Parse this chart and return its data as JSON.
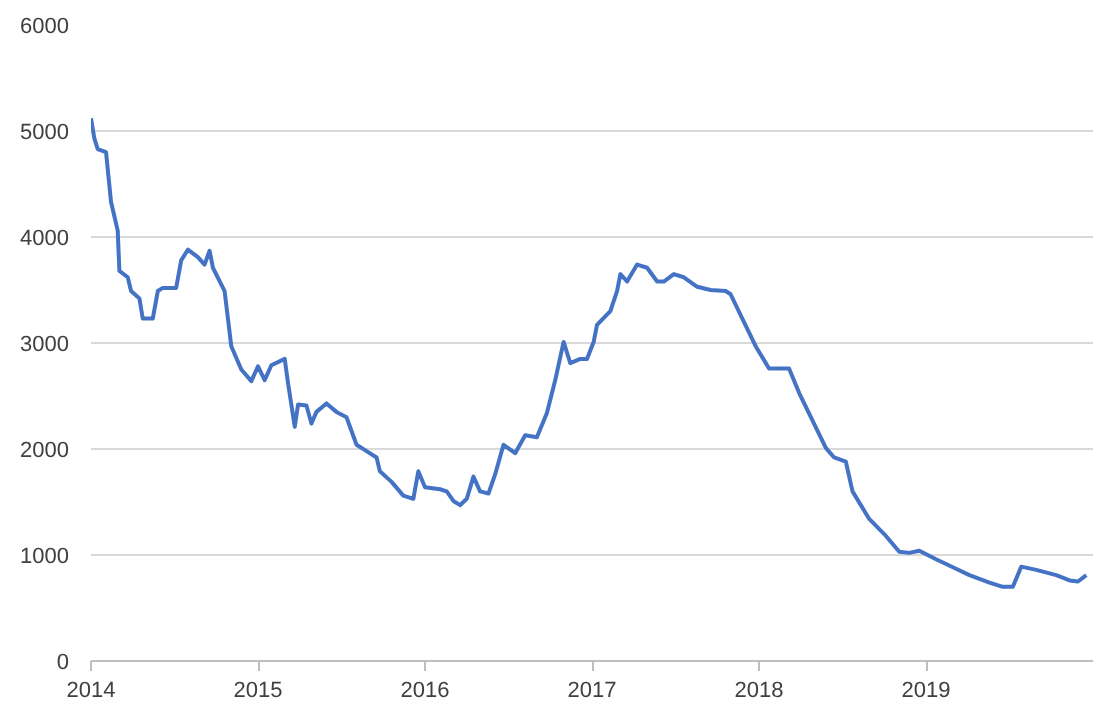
{
  "chart_data": {
    "type": "line",
    "xlim": [
      2014,
      2020
    ],
    "xticks": [
      2014,
      2015,
      2016,
      2017,
      2018,
      2019
    ],
    "ylim": [
      0,
      6000
    ],
    "yticks": [
      0,
      1000,
      2000,
      3000,
      4000,
      5000,
      6000
    ],
    "grid": "y",
    "marker": "none",
    "line_style": "solid",
    "series": [
      {
        "color": "#4472c4",
        "x": [
          2014.0,
          2014.02,
          2014.04,
          2014.09,
          2014.12,
          2014.16,
          2014.17,
          2014.22,
          2014.24,
          2014.29,
          2014.31,
          2014.37,
          2014.4,
          2014.43,
          2014.51,
          2014.54,
          2014.58,
          2014.64,
          2014.68,
          2014.71,
          2014.73,
          2014.8,
          2014.82,
          2014.84,
          2014.9,
          2014.96,
          2015.0,
          2015.04,
          2015.08,
          2015.16,
          2015.18,
          2015.22,
          2015.24,
          2015.29,
          2015.32,
          2015.35,
          2015.41,
          2015.47,
          2015.53,
          2015.59,
          2015.65,
          2015.71,
          2015.73,
          2015.8,
          2015.87,
          2015.93,
          2015.96,
          2016.0,
          2016.09,
          2016.13,
          2016.17,
          2016.21,
          2016.25,
          2016.29,
          2016.33,
          2016.38,
          2016.42,
          2016.47,
          2016.54,
          2016.6,
          2016.67,
          2016.73,
          2016.78,
          2016.83,
          2016.87,
          2016.93,
          2016.97,
          2017.01,
          2017.03,
          2017.11,
          2017.15,
          2017.17,
          2017.21,
          2017.27,
          2017.33,
          2017.39,
          2017.43,
          2017.49,
          2017.55,
          2017.63,
          2017.71,
          2017.8,
          2017.83,
          2017.9,
          2017.98,
          2018.06,
          2018.18,
          2018.24,
          2018.32,
          2018.4,
          2018.45,
          2018.52,
          2018.56,
          2018.66,
          2018.76,
          2018.84,
          2018.9,
          2018.96,
          2019.06,
          2019.18,
          2019.26,
          2019.38,
          2019.46,
          2019.52,
          2019.57,
          2019.66,
          2019.78,
          2019.86,
          2019.91,
          2019.96
        ],
        "values": [
          5120,
          4930,
          4830,
          4800,
          4330,
          4060,
          3680,
          3620,
          3490,
          3420,
          3230,
          3230,
          3490,
          3520,
          3520,
          3780,
          3880,
          3810,
          3740,
          3870,
          3710,
          3490,
          3230,
          2970,
          2750,
          2640,
          2780,
          2650,
          2790,
          2850,
          2620,
          2210,
          2420,
          2410,
          2240,
          2350,
          2430,
          2350,
          2300,
          2040,
          1980,
          1920,
          1790,
          1690,
          1560,
          1530,
          1790,
          1640,
          1620,
          1600,
          1510,
          1470,
          1530,
          1740,
          1600,
          1580,
          1760,
          2040,
          1960,
          2130,
          2110,
          2340,
          2650,
          3010,
          2810,
          2850,
          2850,
          3010,
          3170,
          3300,
          3490,
          3650,
          3580,
          3740,
          3710,
          3580,
          3580,
          3650,
          3620,
          3530,
          3500,
          3490,
          3460,
          3230,
          2970,
          2760,
          2760,
          2530,
          2270,
          2010,
          1920,
          1880,
          1600,
          1340,
          1180,
          1030,
          1020,
          1040,
          960,
          870,
          810,
          740,
          700,
          700,
          890,
          860,
          810,
          760,
          750,
          810
        ]
      }
    ]
  }
}
